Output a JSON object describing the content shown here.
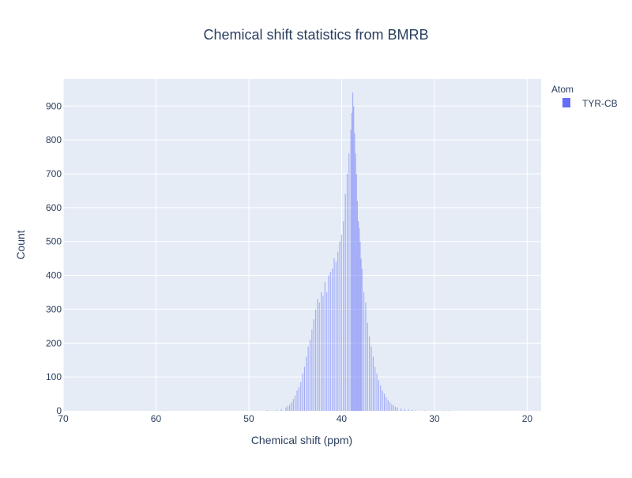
{
  "chart_data": {
    "type": "bar",
    "title": "Chemical shift statistics from BMRB",
    "xlabel": "Chemical shift (ppm)",
    "ylabel": "Count",
    "x_reversed": true,
    "xlim": [
      70,
      18.5
    ],
    "ylim": [
      0,
      980
    ],
    "x_ticks": [
      70,
      60,
      50,
      40,
      30,
      20
    ],
    "y_ticks": [
      0,
      100,
      200,
      300,
      400,
      500,
      600,
      700,
      800,
      900
    ],
    "grid": true,
    "legend": {
      "title": "Atom",
      "placement": "top-right",
      "entries": [
        "TYR-CB"
      ]
    },
    "series": [
      {
        "name": "TYR-CB",
        "color": "#636efa",
        "opacity": 0.5,
        "bin_width": 0.1,
        "x": [
          48.0,
          47.0,
          46.5,
          46.0,
          45.8,
          45.6,
          45.4,
          45.2,
          45.0,
          44.8,
          44.6,
          44.4,
          44.2,
          44.0,
          43.8,
          43.6,
          43.4,
          43.2,
          43.0,
          42.8,
          42.6,
          42.4,
          42.2,
          42.0,
          41.8,
          41.6,
          41.4,
          41.2,
          41.0,
          40.8,
          40.6,
          40.4,
          40.2,
          40.0,
          39.8,
          39.6,
          39.4,
          39.2,
          39.0,
          38.9,
          38.8,
          38.7,
          38.6,
          38.5,
          38.4,
          38.3,
          38.2,
          38.1,
          38.0,
          37.9,
          37.8,
          37.6,
          37.4,
          37.2,
          37.0,
          36.8,
          36.6,
          36.4,
          36.2,
          36.0,
          35.8,
          35.6,
          35.4,
          35.2,
          35.0,
          34.8,
          34.6,
          34.4,
          34.2,
          34.0,
          33.6,
          33.2,
          32.8,
          32.4,
          32.0,
          31.0,
          30.0,
          29.0,
          28.5
        ],
        "values": [
          2,
          3,
          5,
          10,
          14,
          18,
          25,
          35,
          45,
          60,
          70,
          85,
          110,
          130,
          160,
          190,
          210,
          240,
          270,
          300,
          330,
          320,
          350,
          340,
          380,
          350,
          400,
          410,
          420,
          450,
          440,
          470,
          500,
          520,
          560,
          640,
          700,
          760,
          830,
          880,
          940,
          900,
          820,
          760,
          700,
          620,
          560,
          540,
          500,
          450,
          420,
          350,
          320,
          260,
          220,
          190,
          160,
          130,
          110,
          90,
          75,
          60,
          50,
          40,
          32,
          26,
          20,
          16,
          12,
          10,
          7,
          5,
          4,
          3,
          2,
          1,
          1,
          1,
          1
        ]
      }
    ]
  }
}
